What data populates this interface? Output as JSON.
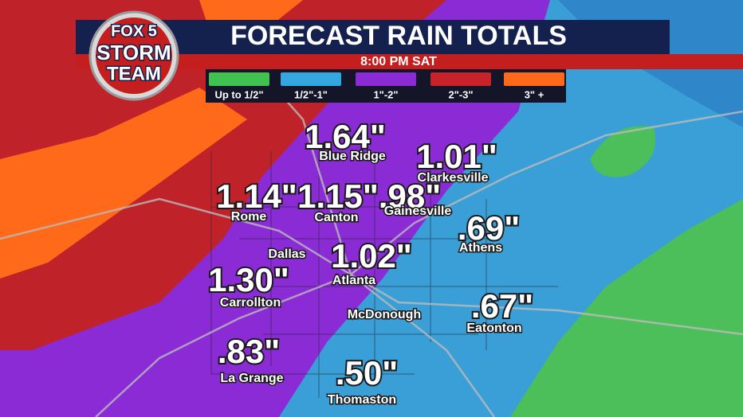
{
  "header": {
    "title": "FORECAST RAIN TOTALS",
    "time": "8:00 PM SAT",
    "logo": {
      "network": "FOX 5",
      "line1": "STORM",
      "line2": "TEAM"
    }
  },
  "legend": [
    {
      "label": "Up to 1/2\"",
      "color": "#3fc24f"
    },
    {
      "label": "1/2\"-1\"",
      "color": "#35a7e0"
    },
    {
      "label": "1\"-2\"",
      "color": "#8a2bd6"
    },
    {
      "label": "2\"-3\"",
      "color": "#c8222a"
    },
    {
      "label": "3\" +",
      "color": "#ff6a1a"
    }
  ],
  "places": [
    {
      "name": "Blue Ridge",
      "amount": "1.64\""
    },
    {
      "name": "Clarkesville",
      "amount": "1.01\""
    },
    {
      "name": "Rome",
      "amount": "1.14\""
    },
    {
      "name": "Canton",
      "amount": "1.15\""
    },
    {
      "name": "Gainesville",
      "amount": ".98\""
    },
    {
      "name": "Athens",
      "amount": ".69\""
    },
    {
      "name": "Atlanta",
      "amount": "1.02\""
    },
    {
      "name": "Dallas"
    },
    {
      "name": "Carrollton",
      "amount": "1.30\""
    },
    {
      "name": "McDonough"
    },
    {
      "name": "Eatonton",
      "amount": ".67\""
    },
    {
      "name": "La Grange",
      "amount": ".83\""
    },
    {
      "name": "Thomaston",
      "amount": ".50\""
    }
  ]
}
